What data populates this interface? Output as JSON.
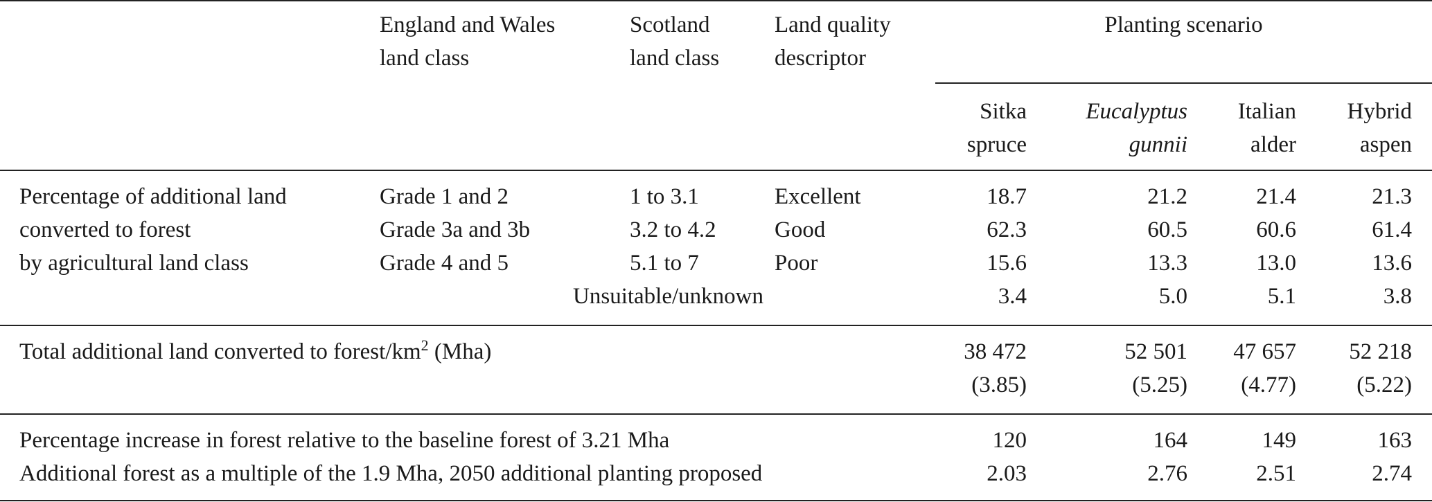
{
  "header": {
    "col_ew": [
      "England and Wales",
      "land class"
    ],
    "col_scot": [
      "Scotland",
      "land class"
    ],
    "col_quality": [
      "Land quality",
      "descriptor"
    ],
    "group": "Planting scenario",
    "species": [
      {
        "line1": "Sitka",
        "line2": "spruce",
        "italic": false
      },
      {
        "line1": "Eucalyptus",
        "line2": "gunnii",
        "italic": true
      },
      {
        "line1": "Italian",
        "line2": "alder",
        "italic": false
      },
      {
        "line1": "Hybrid",
        "line2": "aspen",
        "italic": false
      }
    ]
  },
  "section1": {
    "label": [
      "Percentage of additional land",
      "converted to forest",
      "by agricultural land class"
    ],
    "rows": [
      {
        "ew": "Grade 1 and 2",
        "scot": "1 to 3.1",
        "quality": "Excellent",
        "values": [
          "18.7",
          "21.2",
          "21.4",
          "21.3"
        ]
      },
      {
        "ew": "Grade 3a and 3b",
        "scot": "3.2 to 4.2",
        "quality": "Good",
        "values": [
          "62.3",
          "60.5",
          "60.6",
          "61.4"
        ]
      },
      {
        "ew": "Grade 4 and 5",
        "scot": "5.1 to 7",
        "quality": "Poor",
        "values": [
          "15.6",
          "13.3",
          "13.0",
          "13.6"
        ]
      }
    ],
    "unsuitable": {
      "label": "Unsuitable/unknown",
      "values": [
        "3.4",
        "5.0",
        "5.1",
        "3.8"
      ]
    }
  },
  "section2": {
    "label_before": "Total additional land converted to forest/km",
    "label_sup": "2",
    "label_after": " (Mha)",
    "values": [
      "38 472",
      "52 501",
      "47 657",
      "52 218"
    ],
    "mha": [
      "(3.85)",
      "(5.25)",
      "(4.77)",
      "(5.22)"
    ]
  },
  "section3": {
    "rows": [
      {
        "label": "Percentage increase in forest relative to the baseline forest of 3.21 Mha",
        "values": [
          "120",
          "164",
          "149",
          "163"
        ]
      },
      {
        "label": "Additional forest as a multiple of the 1.9 Mha, 2050 additional planting proposed",
        "values": [
          "2.03",
          "2.76",
          "2.51",
          "2.74"
        ]
      }
    ]
  }
}
